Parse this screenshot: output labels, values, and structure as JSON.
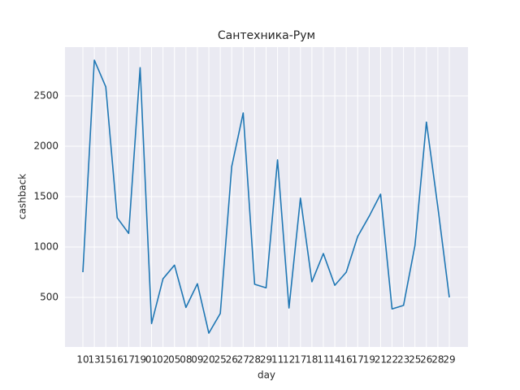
{
  "chart_data": {
    "type": "line",
    "title": "Сантехника-Рум",
    "xlabel": "day",
    "ylabel": "cashback",
    "categories": [
      "10",
      "13",
      "15",
      "16",
      "17",
      "19",
      "01",
      "02",
      "05",
      "08",
      "09",
      "20",
      "25",
      "26",
      "27",
      "28",
      "29",
      "11",
      "12",
      "17",
      "18",
      "11",
      "14",
      "16",
      "17",
      "19",
      "21",
      "22",
      "23",
      "25",
      "26",
      "28",
      "29"
    ],
    "series": [
      {
        "name": "cashback",
        "color": "#1f77b4",
        "values": [
          750,
          2855,
          2590,
          1290,
          1135,
          2780,
          240,
          685,
          820,
          400,
          635,
          145,
          340,
          1800,
          2330,
          630,
          595,
          1865,
          395,
          1485,
          655,
          935,
          620,
          750,
          1105,
          1305,
          1525,
          385,
          420,
          1015,
          2240,
          1395,
          500
        ]
      }
    ],
    "ylim": [
      8,
      2984
    ],
    "yticks": [
      500,
      1000,
      1500,
      2000,
      2500
    ],
    "grid": true
  }
}
